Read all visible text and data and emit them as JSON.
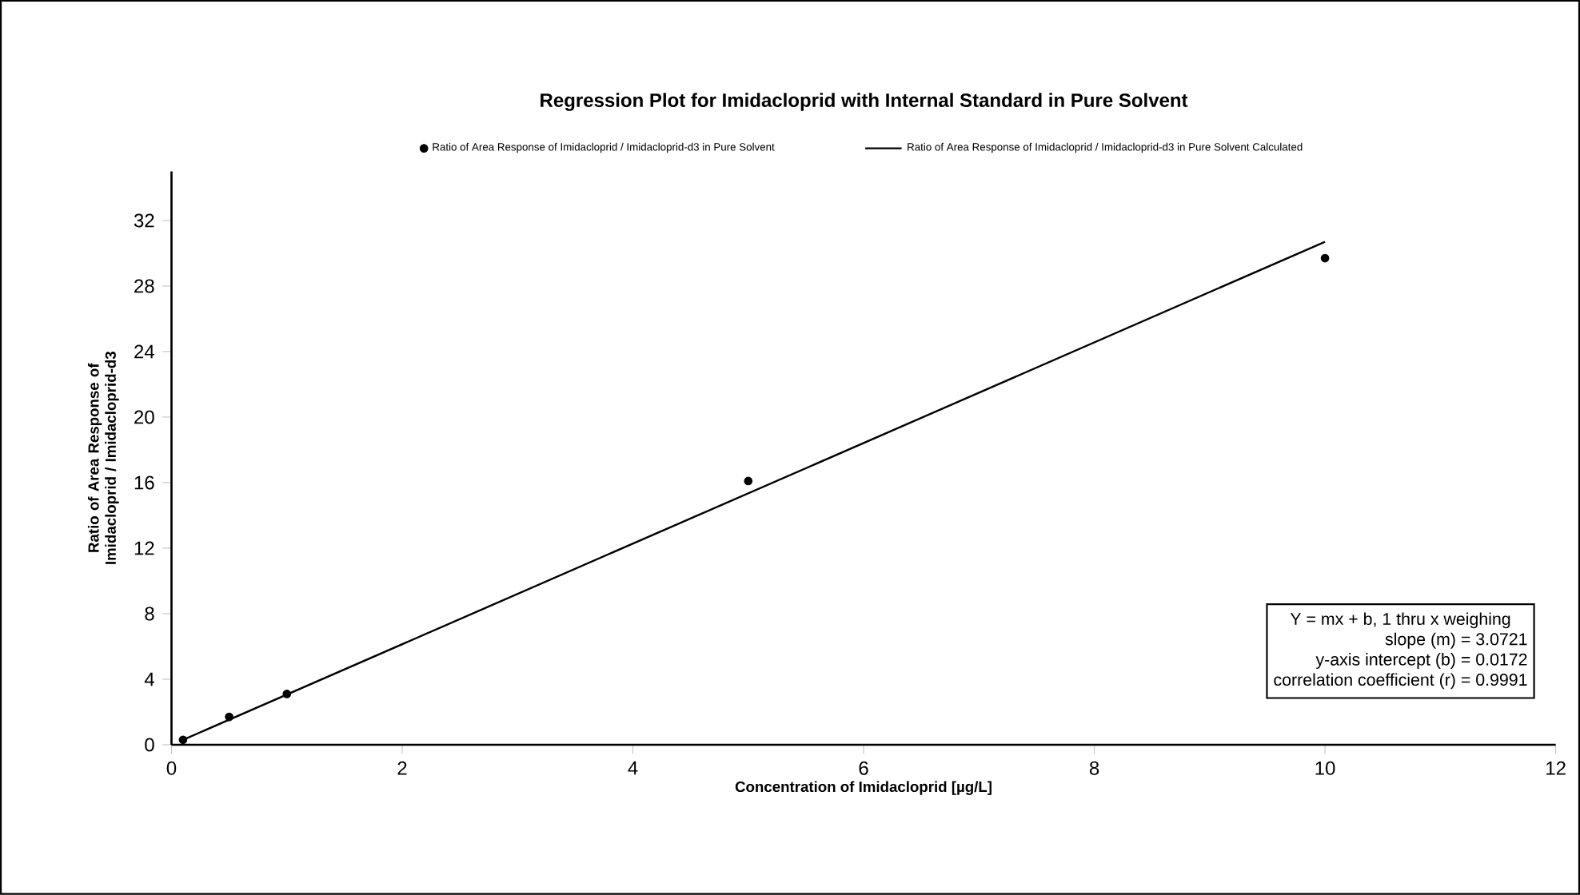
{
  "chart_data": {
    "type": "scatter",
    "title": "Regression Plot for Imidacloprid with Internal Standard in Pure Solvent",
    "xlabel": "Concentration of Imidacloprid [µg/L]",
    "ylabel": "Ratio of Area Response of Imidacloprid / Imidacloprid-d3",
    "xlim": [
      0,
      12
    ],
    "ylim": [
      0,
      35
    ],
    "xticks": [
      0,
      2,
      4,
      6,
      8,
      10,
      12
    ],
    "yticks": [
      0,
      4,
      8,
      12,
      16,
      20,
      24,
      28,
      32
    ],
    "legend": "top",
    "series": [
      {
        "name": "Ratio of Area Response of Imidacloprid / Imidacloprid-d3 in Pure Solvent",
        "marker": "circle",
        "color": "#000000",
        "x": [
          0.1,
          0.5,
          1,
          5,
          10
        ],
        "values": [
          0.3,
          1.7,
          3.1,
          16.1,
          29.7
        ]
      },
      {
        "name": "Ratio of Area Response of Imidacloprid / Imidacloprid-d3 in Pure Solvent Calculated",
        "type": "line",
        "marker": "none",
        "color": "#000000",
        "x": [
          0.1,
          10
        ],
        "values": [
          0.3,
          30.7
        ]
      }
    ],
    "annotations": [
      "Y = mx + b, 1 thru x weighing",
      "slope (m) = 3.0721",
      "y-axis intercept (b) = 0.0172",
      "correlation coefficient (r) = 0.9991"
    ]
  }
}
